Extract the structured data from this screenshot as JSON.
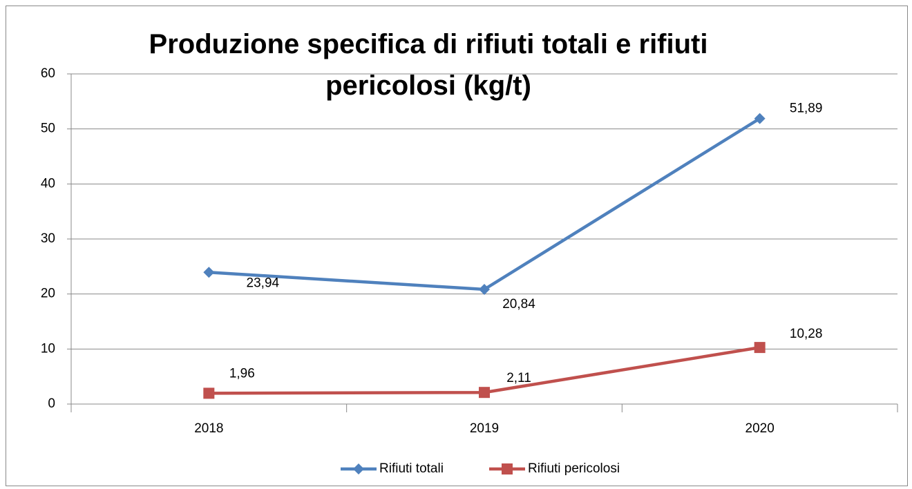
{
  "chart_data": {
    "type": "line",
    "title": "Produzione specifica di rifiuti totali e rifiuti pericolosi (kg/t)",
    "categories": [
      "2018",
      "2019",
      "2020"
    ],
    "series": [
      {
        "name": "Rifiuti totali",
        "color": "#4f81bd",
        "marker": "diamond",
        "values": [
          23.94,
          20.84,
          51.89
        ],
        "value_labels": [
          "23,94",
          "20,84",
          "51,89"
        ]
      },
      {
        "name": "Rifiuti pericolosi",
        "color": "#c0504d",
        "marker": "square",
        "values": [
          1.96,
          2.11,
          10.28
        ],
        "value_labels": [
          "1,96",
          "2,11",
          "10,28"
        ]
      }
    ],
    "ylim": [
      0,
      60
    ],
    "yticks": [
      0,
      10,
      20,
      30,
      40,
      50,
      60
    ],
    "grid": true,
    "legend": "bottom"
  }
}
